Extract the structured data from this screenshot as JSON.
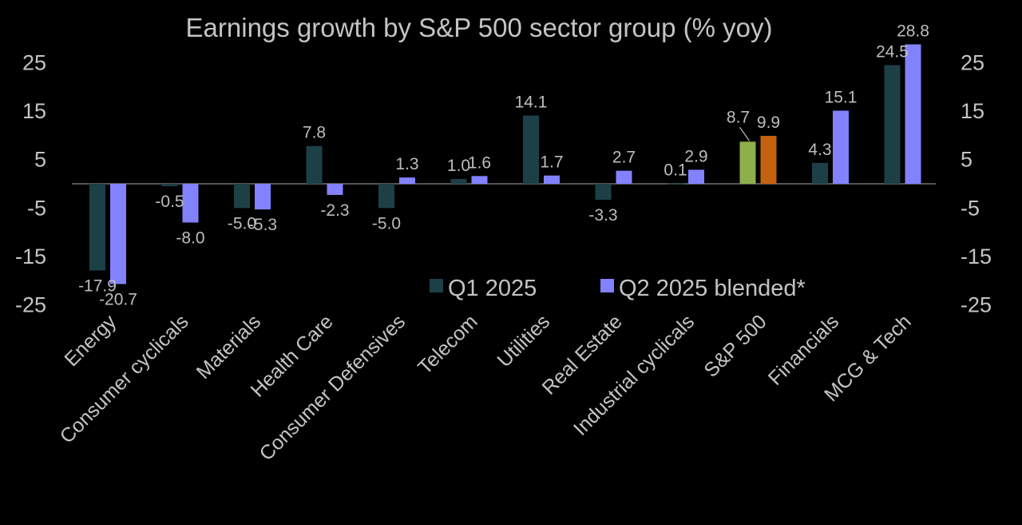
{
  "chart_data": {
    "type": "bar",
    "title": "Earnings growth by S&P 500 sector group (% yoy)",
    "xlabel": "",
    "ylabel": "",
    "ylim": [
      -25,
      30
    ],
    "yticks": [
      25,
      15,
      5,
      -5,
      -15,
      -25
    ],
    "secondary_yticks": [
      25,
      15,
      5,
      -5,
      -15,
      -25
    ],
    "grid": false,
    "legend_position": "bottom-center",
    "categories": [
      "Energy",
      "Consumer cyclicals",
      "Materials",
      "Health Care",
      "Consumer Defensives",
      "Telecom",
      "Utilities",
      "Real Estate",
      "Industrial cyclicals",
      "S&P 500",
      "Financials",
      "MCG & Tech"
    ],
    "series": [
      {
        "name": "Q1 2025",
        "color": "#1d4047",
        "values": [
          -17.9,
          -0.5,
          -5.0,
          7.8,
          -5.0,
          1.0,
          14.1,
          -3.3,
          0.1,
          8.7,
          4.3,
          24.5
        ],
        "labels": [
          "-17.9",
          "-0.5",
          "-5.0",
          "7.8",
          "-5.0",
          "1.0",
          "14.1",
          "-3.3",
          "0.1",
          "8.7",
          "4.3",
          "24.5"
        ]
      },
      {
        "name": "Q2 2025 blended*",
        "color": "#8282ff",
        "values": [
          -20.7,
          -8.0,
          -5.3,
          -2.3,
          1.3,
          1.6,
          1.7,
          2.7,
          2.9,
          9.9,
          15.1,
          28.8
        ],
        "labels": [
          "-20.7",
          "-8.0",
          "-5.3",
          "-2.3",
          "1.3",
          "1.6",
          "1.7",
          "2.7",
          "2.9",
          "9.9",
          "15.1",
          "28.8"
        ]
      }
    ],
    "highlight": {
      "category": "S&P 500",
      "q1_color": "#8fae4c",
      "q2_color": "#c5610f"
    },
    "text_color": "#c4c4c4"
  }
}
